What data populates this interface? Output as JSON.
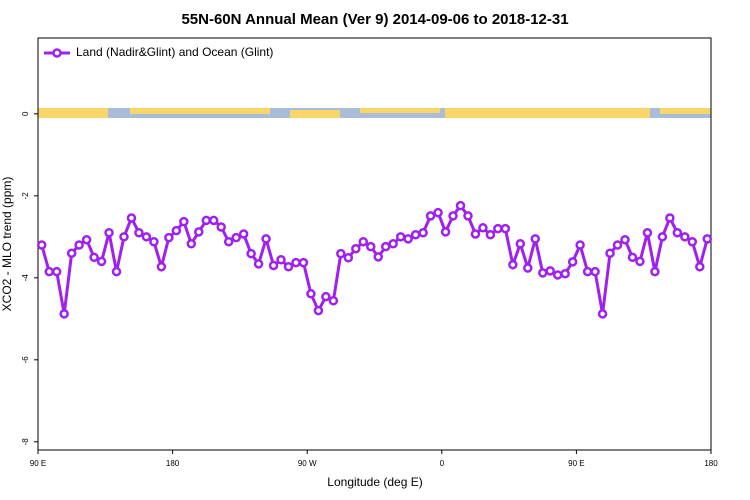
{
  "chart_data": {
    "type": "line",
    "title": "55N-60N Annual Mean (Ver 9)   2014-09-06 to 2018-12-31",
    "x_label": "Longitude (deg E)",
    "y_label": "XCO2 - MLO trend (ppm)",
    "xlim": [
      90,
      540
    ],
    "ylim": [
      -8.2,
      1.85
    ],
    "xticks": [
      {
        "value": 90,
        "label": "90 E"
      },
      180,
      {
        "value": 270,
        "label": "90 W"
      },
      {
        "value": 360,
        "label": "0"
      },
      {
        "value": 450,
        "label": "90 E"
      },
      {
        "value": 540,
        "label": "180"
      }
    ],
    "yticks": [
      0,
      -2,
      -4,
      -6,
      -8
    ],
    "legend": "top-left",
    "x": [
      92.5,
      97.5,
      102.5,
      107.5,
      112.5,
      117.5,
      122.5,
      127.5,
      132.5,
      137.5,
      142.5,
      147.5,
      152.5,
      157.5,
      162.5,
      167.5,
      172.5,
      177.5,
      182.5,
      187.5,
      192.5,
      197.5,
      202.5,
      207.5,
      212.5,
      217.5,
      222.5,
      227.5,
      232.5,
      237.5,
      242.5,
      247.5,
      252.5,
      257.5,
      262.5,
      267.5,
      272.5,
      277.5,
      282.5,
      287.5,
      292.5,
      297.5,
      302.5,
      307.5,
      312.5,
      317.5,
      322.5,
      327.5,
      332.5,
      337.5,
      342.5,
      347.5,
      352.5,
      357.5,
      362.5,
      367.5,
      372.5,
      377.5,
      382.5,
      387.5,
      392.5,
      397.5,
      402.5,
      407.5,
      412.5,
      417.5,
      422.5,
      427.5,
      432.5,
      437.5,
      442.5,
      447.5,
      452.5,
      457.5,
      462.5,
      467.5,
      472.5,
      477.5,
      482.5,
      487.5,
      492.5,
      497.5,
      502.5,
      507.5,
      512.5,
      517.5,
      522.5,
      527.5,
      532.5,
      537.5
    ],
    "series": [
      {
        "name": "Land (Nadir&Glint) and Ocean (Glint)",
        "color": "#a020f0",
        "values": [
          -3.2,
          -3.85,
          -3.85,
          -4.88,
          -3.4,
          -3.2,
          -3.07,
          -3.5,
          -3.6,
          -2.9,
          -3.85,
          -3.0,
          -2.54,
          -2.9,
          -3.0,
          -3.12,
          -3.73,
          -3.02,
          -2.85,
          -2.63,
          -3.17,
          -2.88,
          -2.6,
          -2.6,
          -2.76,
          -3.12,
          -3.02,
          -2.93,
          -3.41,
          -3.66,
          -3.05,
          -3.7,
          -3.56,
          -3.73,
          -3.63,
          -3.63,
          -4.39,
          -4.8,
          -4.46,
          -4.56,
          -3.41,
          -3.51,
          -3.29,
          -3.12,
          -3.24,
          -3.49,
          -3.24,
          -3.17,
          -3.0,
          -3.05,
          -2.95,
          -2.9,
          -2.49,
          -2.41,
          -2.88,
          -2.49,
          -2.24,
          -2.49,
          -2.93,
          -2.78,
          -2.95,
          -2.8,
          -2.8,
          -3.68,
          -3.17,
          -3.76,
          -3.05,
          -3.88,
          -3.83,
          -3.93,
          -3.9,
          -3.61,
          -3.2,
          -3.85,
          -3.85,
          -4.88,
          -3.4,
          -3.2,
          -3.07,
          -3.5,
          -3.6,
          -2.9,
          -3.85,
          -3.0,
          -2.54,
          -2.9,
          -3.0,
          -3.12,
          -3.73,
          -3.05
        ]
      }
    ]
  }
}
